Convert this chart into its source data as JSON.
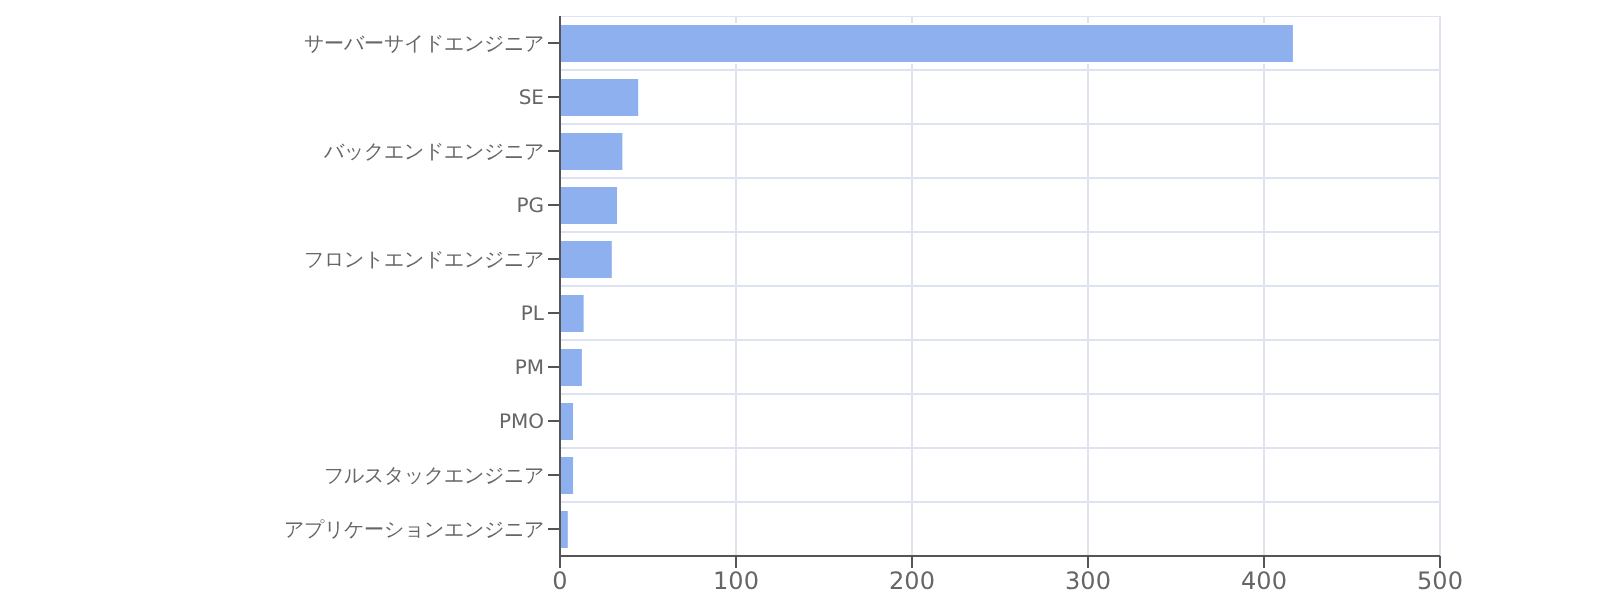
{
  "chart_data": {
    "type": "bar",
    "orientation": "horizontal",
    "categories": [
      "サーバーサイドエンジニア",
      "SE",
      "バックエンドエンジニア",
      "PG",
      "フロントエンドエンジニア",
      "PL",
      "PM",
      "PMO",
      "フルスタックエンジニア",
      "アプリケーションエンジニア"
    ],
    "values": [
      417,
      45,
      36,
      33,
      30,
      14,
      13,
      8,
      8,
      5
    ],
    "color": "#8fb0ee",
    "xlim": [
      0,
      500
    ],
    "xticks": [
      0,
      100,
      200,
      300,
      400,
      500
    ],
    "grid": true
  }
}
